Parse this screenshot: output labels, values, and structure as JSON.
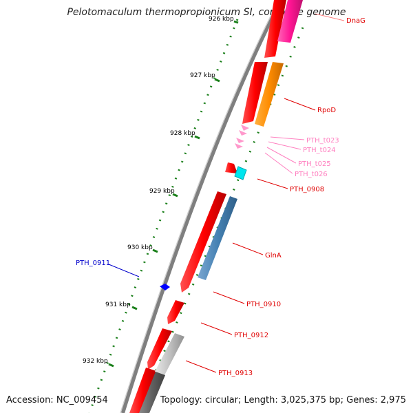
{
  "title": "Pelotomaculum thermopropionicum SI, complete genome",
  "footer": {
    "accession": "Accession: NC_009454",
    "topology": "Topology: circular; Length: 3,025,375 bp; Genes: 2,975"
  },
  "ticks": [
    {
      "label": "926 kbp"
    },
    {
      "label": "927 kbp"
    },
    {
      "label": "928 kbp"
    },
    {
      "label": "929 kbp"
    },
    {
      "label": "930 kbp"
    },
    {
      "label": "931 kbp"
    },
    {
      "label": "932 kbp"
    }
  ],
  "genes": [
    {
      "name": "DnaG",
      "color": "#ff1493"
    },
    {
      "name": "RpoD",
      "color": "#ff8c00"
    },
    {
      "name": "PTH_t023",
      "color": "#ff99cc"
    },
    {
      "name": "PTH_t024",
      "color": "#ff99cc"
    },
    {
      "name": "PTH_t025",
      "color": "#ff99cc"
    },
    {
      "name": "PTH_t026",
      "color": "#ff99cc"
    },
    {
      "name": "PTH_0908",
      "color": "#00e5ee"
    },
    {
      "name": "GlnA",
      "color": "#4682b4"
    },
    {
      "name": "PTH_0910",
      "color": "#ff0000"
    },
    {
      "name": "PTH_0911",
      "color": "#0000ff"
    },
    {
      "name": "PTH_0912",
      "color": "#ff0000"
    },
    {
      "name": "PTH_0913",
      "color": "#c0c0c0"
    }
  ],
  "colors": {
    "backbone": "#808080",
    "forward_gene": "#ff0000",
    "tick_mark": "#1a7f1a",
    "label_red": "#e00000",
    "label_pink": "#ff80c0",
    "label_blue": "#0000cc"
  }
}
